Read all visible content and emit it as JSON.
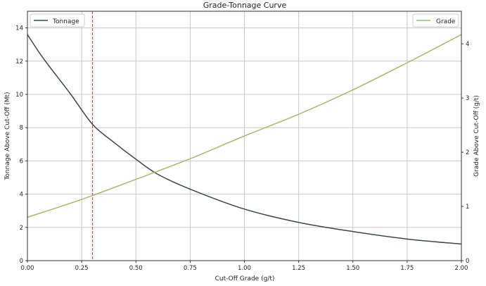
{
  "chart_data": {
    "type": "line",
    "title": "Grade-Tonnage Curve",
    "xlabel": "Cut-Off Grade (g/t)",
    "ylabel": "Tonnage Above Cut-Off (Mt)",
    "y2label": "Grade Above Cut-Off (g/t)",
    "xlim": [
      0,
      2
    ],
    "ylim": [
      0,
      15
    ],
    "y2lim": [
      0,
      4.6
    ],
    "xticks": [
      "0.00",
      "0.25",
      "0.50",
      "0.75",
      "1.00",
      "1.25",
      "1.50",
      "1.75",
      "2.00"
    ],
    "yticks": [
      "0",
      "2",
      "4",
      "6",
      "8",
      "10",
      "12",
      "14"
    ],
    "y2ticks": [
      "0",
      "1",
      "2",
      "3",
      "4"
    ],
    "grid": true,
    "cutoff_line": {
      "x": 0.3,
      "color": "#e03030",
      "style": "dashed"
    },
    "series": [
      {
        "name": "Tonnage",
        "axis": "left",
        "color": "#3b4a3b",
        "legend": "top-left",
        "x": [
          0,
          0.05,
          0.1,
          0.2,
          0.3,
          0.4,
          0.5,
          0.6,
          0.75,
          1.0,
          1.25,
          1.5,
          1.75,
          2.0
        ],
        "y": [
          13.6,
          12.6,
          11.7,
          10.0,
          8.2,
          7.1,
          6.1,
          5.2,
          4.3,
          3.1,
          2.3,
          1.75,
          1.3,
          1.0
        ]
      },
      {
        "name": "Grade",
        "axis": "right",
        "color": "#9fbc6e",
        "legend": "top-right",
        "x": [
          0,
          0.25,
          0.5,
          0.75,
          1.0,
          1.25,
          1.5,
          1.75,
          2.0
        ],
        "y": [
          0.8,
          1.13,
          1.5,
          1.88,
          2.3,
          2.7,
          3.15,
          3.65,
          4.17
        ]
      }
    ]
  }
}
